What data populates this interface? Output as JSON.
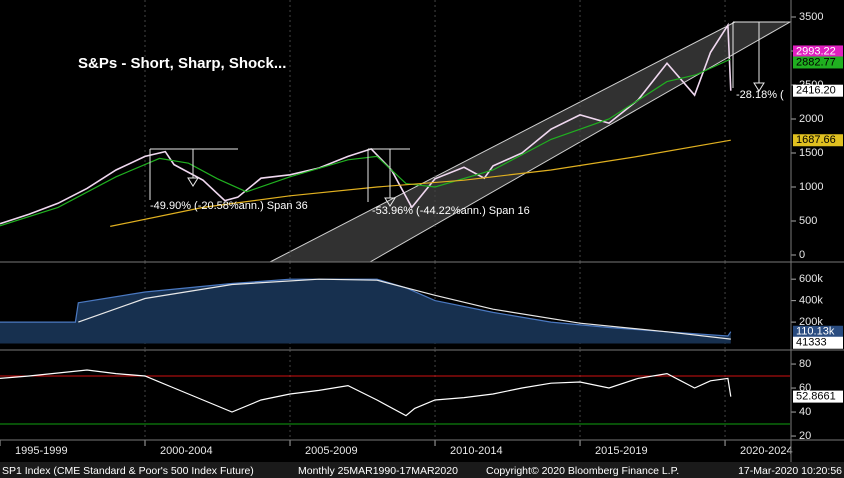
{
  "chart_data": [
    {
      "type": "line",
      "title": "S&Ps - Short, Sharp, Shock...",
      "annotations": [
        "-49.90% (-20.58%ann.) Span 36",
        "-53.96% (-44.22%ann.) Span 16",
        "-28.18% ("
      ],
      "xlim": [
        1995,
        2022.24
      ],
      "ylim": [
        -103,
        3750
      ],
      "yticks": [
        0,
        500,
        1000,
        1500,
        2000,
        2500,
        3000,
        3500
      ],
      "series": [
        {
          "color": "#f0d8f0",
          "x": [
            1995,
            1996,
            1997,
            1998,
            1999,
            2000,
            2000.7,
            2001,
            2002,
            2002.75,
            2003.2,
            2004,
            2005,
            2006,
            2007,
            2007.8,
            2008.5,
            2009.2,
            2010,
            2011,
            2011.7,
            2012,
            2013,
            2014,
            2015,
            2016,
            2017,
            2018,
            2018.95,
            2019.5,
            2020.1,
            2020.2
          ],
          "values": [
            460,
            600,
            760,
            980,
            1250,
            1450,
            1520,
            1330,
            1100,
            800,
            850,
            1130,
            1180,
            1280,
            1450,
            1560,
            1250,
            700,
            1120,
            1290,
            1130,
            1310,
            1500,
            1850,
            2060,
            1940,
            2280,
            2820,
            2350,
            2980,
            3380,
            2416.2
          ]
        },
        {
          "color": "#20b020",
          "x": [
            1995,
            1997,
            1999,
            2000.5,
            2001.5,
            2002.5,
            2003.5,
            2005,
            2007,
            2008,
            2009,
            2010,
            2012,
            2014,
            2016,
            2018,
            2019,
            2020.2
          ],
          "values": [
            430,
            700,
            1150,
            1420,
            1350,
            1120,
            930,
            1150,
            1400,
            1450,
            1050,
            1000,
            1250,
            1700,
            2000,
            2550,
            2650,
            2882.77
          ]
        },
        {
          "color": "#e0b020",
          "x": [
            1998.8,
            2002,
            2005,
            2008,
            2011,
            2014,
            2017,
            2020.2
          ],
          "values": [
            420,
            700,
            870,
            1000,
            1100,
            1250,
            1450,
            1687.66
          ]
        }
      ],
      "markers": [
        {
          "value": 2993.22,
          "bg": "#e020c0",
          "fg": "#ffffff"
        },
        {
          "value": 2882.77,
          "bg": "#20b020",
          "fg": "#000000"
        },
        {
          "value": 2416.2,
          "label": "2416.20",
          "bg": "#ffffff",
          "fg": "#000000"
        },
        {
          "value": 1687.66,
          "bg": "#e0c020",
          "fg": "#000000"
        }
      ]
    },
    {
      "type": "area",
      "xlim": [
        1995,
        2022.24
      ],
      "ylim": [
        -60000,
        760000
      ],
      "yticks": [
        {
          "value": 200000,
          "label": "200k"
        },
        {
          "value": 400000,
          "label": "400k"
        },
        {
          "value": 600000,
          "label": "600k"
        }
      ],
      "series": [
        {
          "color": "#4a78c0",
          "fill": "#17304f",
          "x": [
            1995,
            1997.6,
            1997.7,
            2000,
            2003,
            2005,
            2008,
            2009,
            2010,
            2012,
            2014,
            2016,
            2018,
            2020.1,
            2020.2
          ],
          "values": [
            200000,
            200000,
            380000,
            480000,
            560000,
            600000,
            600000,
            520000,
            400000,
            290000,
            200000,
            150000,
            110000,
            70000,
            110130
          ]
        },
        {
          "color": "#e8e8e8",
          "x": [
            1997.7,
            2000,
            2003,
            2006,
            2008,
            2010,
            2012,
            2015,
            2018,
            2020.2
          ],
          "values": [
            200000,
            420000,
            550000,
            600000,
            590000,
            450000,
            320000,
            190000,
            110000,
            41333
          ]
        }
      ],
      "markers": [
        {
          "value": 110130,
          "label": "110.13k",
          "bg": "#2a4c80",
          "fg": "#ffffff"
        },
        {
          "value": 41333,
          "bg": "#ffffff",
          "fg": "#000000"
        }
      ]
    },
    {
      "type": "line",
      "xlim": [
        1995,
        2022.24
      ],
      "ylim": [
        16.7,
        91.7
      ],
      "yticks": [
        20,
        40,
        60,
        80
      ],
      "levels": [
        {
          "value": 70,
          "color": "#d01010"
        },
        {
          "value": 30,
          "color": "#10a010"
        }
      ],
      "series": [
        {
          "color": "#ffffff",
          "x": [
            1995,
            1996,
            1998,
            1999,
            2000,
            2001,
            2002,
            2003,
            2004,
            2005,
            2006,
            2007,
            2008,
            2009,
            2009.3,
            2010,
            2011,
            2012,
            2013,
            2014,
            2015,
            2016,
            2017,
            2018,
            2018.95,
            2019.5,
            2020.1,
            2020.2
          ],
          "values": [
            68,
            70,
            75,
            72,
            70,
            60,
            50,
            40,
            50,
            55,
            58,
            62,
            50,
            37,
            43,
            50,
            52,
            55,
            60,
            64,
            65,
            60,
            68,
            72,
            60,
            66,
            68,
            52.8661
          ]
        }
      ],
      "markers": [
        {
          "value": 52.8661,
          "bg": "#ffffff",
          "fg": "#000000"
        }
      ]
    }
  ],
  "time_axis": {
    "ticks": [
      {
        "value": 1995,
        "label": "1995-1999"
      },
      {
        "value": 2000,
        "label": "2000-2004"
      },
      {
        "value": 2005,
        "label": "2005-2009"
      },
      {
        "value": 2010,
        "label": "2010-2014"
      },
      {
        "value": 2015,
        "label": "2015-2019"
      },
      {
        "value": 2020,
        "label": "2020-2024"
      }
    ]
  },
  "footer": {
    "security": "SP1 Index (CME Standard & Poor's 500 Index Future)",
    "period": "Monthly 25MAR1990-17MAR2020",
    "copyright": "Copyright© 2020 Bloomberg Finance L.P.",
    "timestamp": "17-Mar-2020 10:20:56"
  }
}
